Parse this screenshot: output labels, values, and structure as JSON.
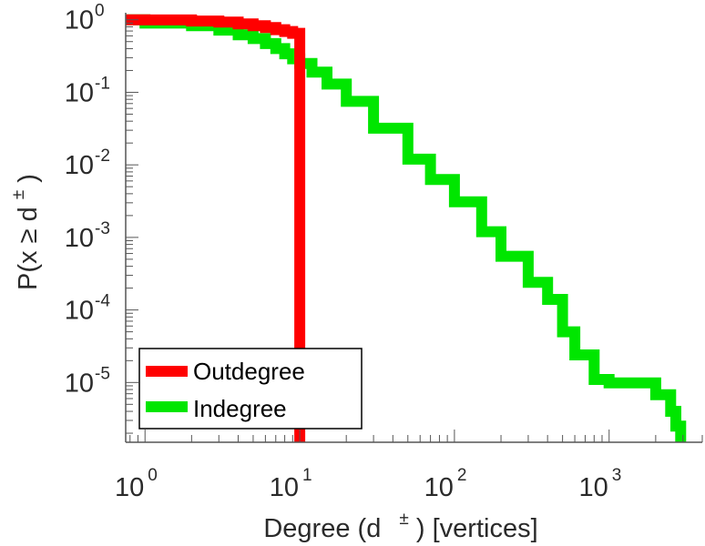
{
  "chart_data": {
    "type": "line",
    "scale": {
      "x": "log",
      "y": "log"
    },
    "xlim": [
      0.75,
      4000
    ],
    "ylim": [
      1.5e-06,
      1.25
    ],
    "xlabel": {
      "prefix": "Degree (d",
      "superscript": "±",
      "suffix": ") [vertices]"
    },
    "ylabel": {
      "prefix": "P(x ≥ d",
      "superscript": "±",
      "suffix": ")"
    },
    "x_ticks": [
      {
        "value": 1,
        "base": "10",
        "exp": "0"
      },
      {
        "value": 10,
        "base": "10",
        "exp": "1"
      },
      {
        "value": 100,
        "base": "10",
        "exp": "2"
      },
      {
        "value": 1000,
        "base": "10",
        "exp": "3"
      }
    ],
    "y_ticks": [
      {
        "value": 1,
        "base": "10",
        "exp": "0"
      },
      {
        "value": 0.1,
        "base": "10",
        "exp": "-1"
      },
      {
        "value": 0.01,
        "base": "10",
        "exp": "-2"
      },
      {
        "value": 0.001,
        "base": "10",
        "exp": "-3"
      },
      {
        "value": 0.0001,
        "base": "10",
        "exp": "-4"
      },
      {
        "value": 1e-05,
        "base": "10",
        "exp": "-5"
      }
    ],
    "legend": {
      "position": "bottom-left"
    },
    "series": [
      {
        "name": "Outdegree",
        "color": "#ff0000",
        "points": [
          [
            0.75,
            1.0
          ],
          [
            1,
            0.995
          ],
          [
            2,
            0.96
          ],
          [
            3,
            0.93
          ],
          [
            4,
            0.88
          ],
          [
            5,
            0.83
          ],
          [
            6,
            0.78
          ],
          [
            7,
            0.73
          ],
          [
            8,
            0.69
          ],
          [
            9,
            0.65
          ],
          [
            10,
            0.62
          ],
          [
            10,
            1.5e-06
          ]
        ]
      },
      {
        "name": "Indegree",
        "color": "#00e600",
        "points": [
          [
            0.75,
            1.0
          ],
          [
            1,
            0.9
          ],
          [
            2,
            0.83
          ],
          [
            3,
            0.72
          ],
          [
            4,
            0.62
          ],
          [
            5,
            0.55
          ],
          [
            6,
            0.47
          ],
          [
            7,
            0.4
          ],
          [
            8,
            0.34
          ],
          [
            9,
            0.29
          ],
          [
            10,
            0.25
          ],
          [
            12,
            0.19
          ],
          [
            15,
            0.13
          ],
          [
            20,
            0.075
          ],
          [
            30,
            0.032
          ],
          [
            50,
            0.012
          ],
          [
            70,
            0.0063
          ],
          [
            100,
            0.0031
          ],
          [
            150,
            0.0012
          ],
          [
            200,
            0.00055
          ],
          [
            300,
            0.00024
          ],
          [
            400,
            0.00014
          ],
          [
            500,
            5e-05
          ],
          [
            600,
            2.4e-05
          ],
          [
            800,
            1.1e-05
          ],
          [
            1000,
            9.9e-06
          ],
          [
            1600,
            9.9e-06
          ],
          [
            2000,
            6.8e-06
          ],
          [
            2400,
            6.8e-06
          ],
          [
            2500,
            4e-06
          ],
          [
            2700,
            2.5e-06
          ],
          [
            2900,
            1.5e-06
          ]
        ]
      }
    ]
  }
}
